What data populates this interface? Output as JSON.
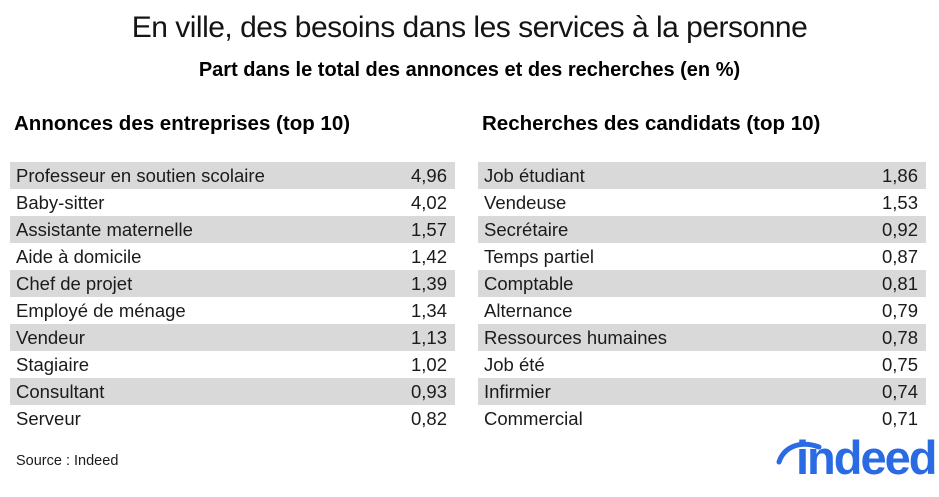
{
  "title": "En ville, des besoins dans les services à la personne",
  "subtitle": "Part dans le total des annonces et des recherches (en %)",
  "footer": {
    "source": "Source : Indeed",
    "logo_text": "indeed"
  },
  "colors": {
    "brand_blue": "#2a6ae3",
    "row_stripe": "#d9d9d9",
    "text": "#1b1b1b"
  },
  "chart_data": [
    {
      "type": "table",
      "title": "Annonces des entreprises (top 10)",
      "unit": "% du total des annonces",
      "rows": [
        {
          "label": "Professeur en soutien scolaire",
          "value": "4,96"
        },
        {
          "label": "Baby-sitter",
          "value": "4,02"
        },
        {
          "label": "Assistante maternelle",
          "value": "1,57"
        },
        {
          "label": "Aide à domicile",
          "value": "1,42"
        },
        {
          "label": "Chef de projet",
          "value": "1,39"
        },
        {
          "label": "Employé de ménage",
          "value": "1,34"
        },
        {
          "label": "Vendeur",
          "value": "1,13"
        },
        {
          "label": "Stagiaire",
          "value": "1,02"
        },
        {
          "label": "Consultant",
          "value": "0,93"
        },
        {
          "label": "Serveur",
          "value": "0,82"
        }
      ],
      "values_numeric": [
        4.96,
        4.02,
        1.57,
        1.42,
        1.39,
        1.34,
        1.13,
        1.02,
        0.93,
        0.82
      ]
    },
    {
      "type": "table",
      "title": "Recherches des candidats (top 10)",
      "unit": "% du total des recherches",
      "rows": [
        {
          "label": "Job étudiant",
          "value": "1,86"
        },
        {
          "label": "Vendeuse",
          "value": "1,53"
        },
        {
          "label": "Secrétaire",
          "value": "0,92"
        },
        {
          "label": "Temps partiel",
          "value": "0,87"
        },
        {
          "label": "Comptable",
          "value": "0,81"
        },
        {
          "label": "Alternance",
          "value": "0,79"
        },
        {
          "label": "Ressources humaines",
          "value": "0,78"
        },
        {
          "label": "Job été",
          "value": "0,75"
        },
        {
          "label": "Infirmier",
          "value": "0,74"
        },
        {
          "label": "Commercial",
          "value": "0,71"
        }
      ],
      "values_numeric": [
        1.86,
        1.53,
        0.92,
        0.87,
        0.81,
        0.79,
        0.78,
        0.75,
        0.74,
        0.71
      ]
    }
  ]
}
